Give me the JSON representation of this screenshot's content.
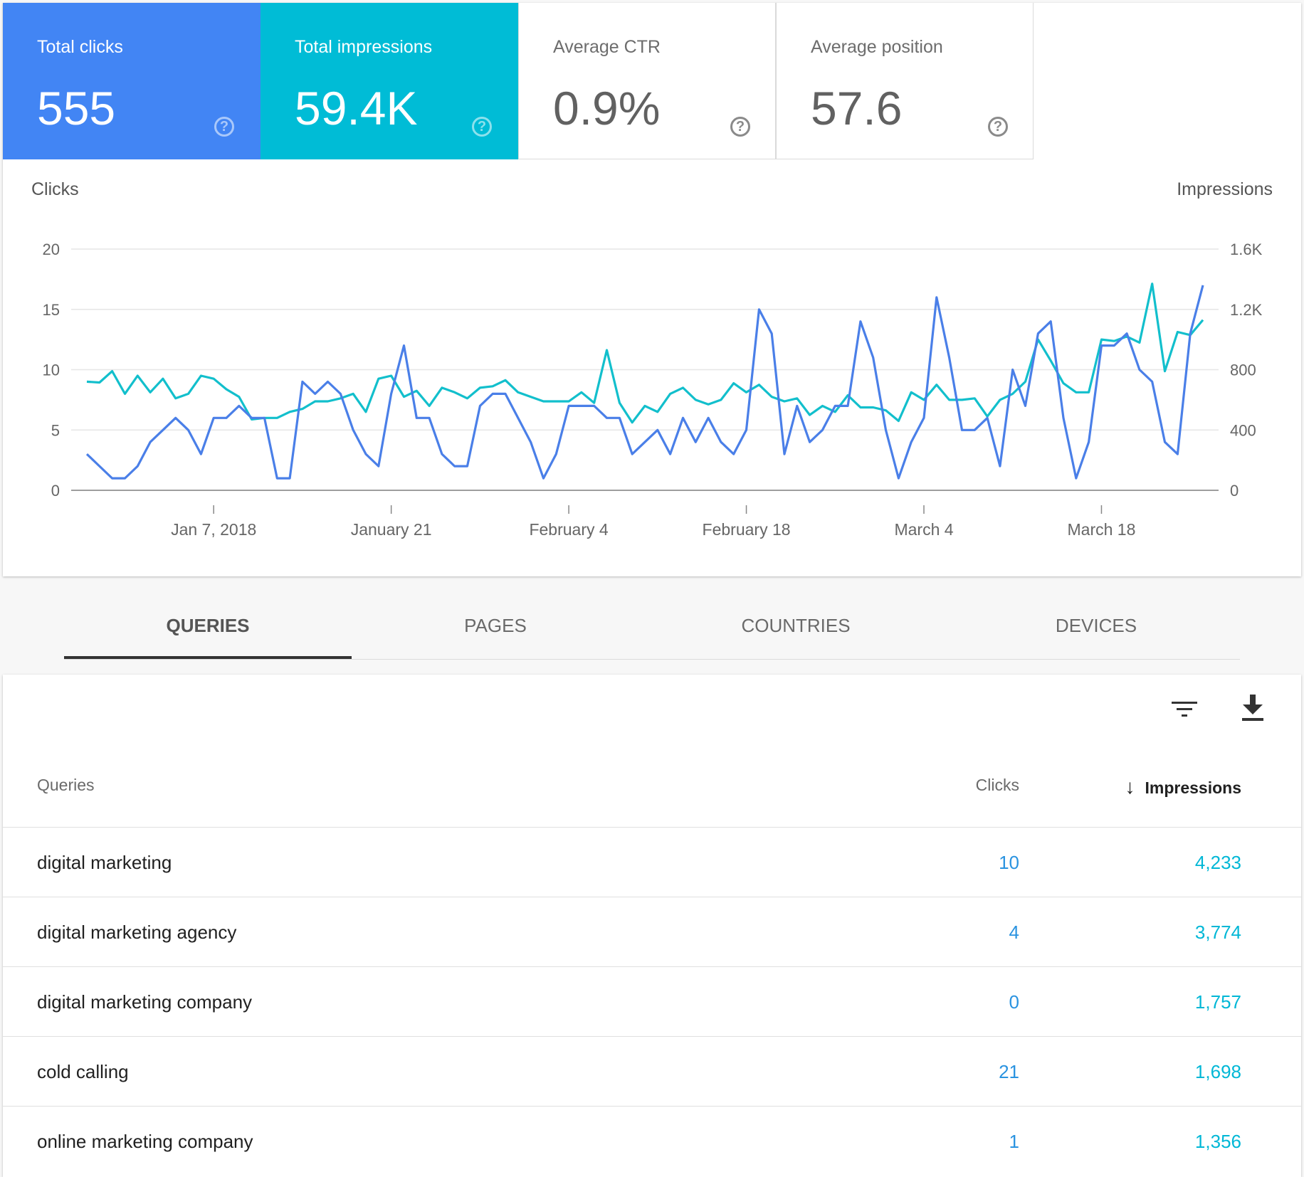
{
  "metrics": [
    {
      "label": "Total clicks",
      "value": "555",
      "bg": "#4285f4"
    },
    {
      "label": "Total impressions",
      "value": "59.4K",
      "bg": "#00bcd6"
    },
    {
      "label": "Average CTR",
      "value": "0.9%"
    },
    {
      "label": "Average position",
      "value": "57.6"
    }
  ],
  "help_glyph": "?",
  "chart_data": {
    "type": "line",
    "y_left_label": "Clicks",
    "y_right_label": "Impressions",
    "y_left_ticks": [
      "0",
      "5",
      "10",
      "15",
      "20"
    ],
    "y_right_ticks": [
      "0",
      "400",
      "800",
      "1.2K",
      "1.6K"
    ],
    "ylim_left": [
      0,
      20
    ],
    "ylim_right": [
      0,
      1600
    ],
    "x_ticks": [
      "Jan 7, 2018",
      "January 21",
      "February 4",
      "February 18",
      "March 4",
      "March 18"
    ],
    "grid": true,
    "series": [
      {
        "name": "Clicks",
        "axis": "left",
        "color": "#4a7fe8",
        "values": [
          3,
          2,
          1,
          1,
          2,
          4,
          5,
          6,
          5,
          3,
          6,
          6,
          7,
          6,
          6,
          1,
          1,
          9,
          8,
          9,
          8,
          5,
          3,
          2,
          8,
          12,
          6,
          6,
          3,
          2,
          2,
          7,
          8,
          8,
          6,
          4,
          1,
          3,
          7,
          7,
          7,
          6,
          6,
          3,
          4,
          5,
          3,
          6,
          4,
          6,
          4,
          3,
          5,
          15,
          13,
          3,
          7,
          4,
          5,
          7,
          7,
          14,
          11,
          5,
          1,
          4,
          6,
          16,
          11,
          5,
          5,
          6,
          2,
          10,
          7,
          13,
          14,
          6,
          1,
          4,
          12,
          12,
          13,
          10,
          9,
          4,
          3,
          13,
          17
        ]
      },
      {
        "name": "Impressions",
        "axis": "right",
        "color": "#12bfcc",
        "values": [
          720,
          715,
          790,
          640,
          760,
          650,
          740,
          610,
          640,
          760,
          740,
          670,
          620,
          470,
          480,
          480,
          520,
          540,
          590,
          590,
          610,
          640,
          520,
          740,
          760,
          620,
          660,
          560,
          680,
          650,
          610,
          680,
          690,
          730,
          650,
          620,
          590,
          590,
          590,
          650,
          580,
          930,
          580,
          450,
          560,
          520,
          640,
          680,
          600,
          570,
          600,
          710,
          650,
          700,
          620,
          590,
          610,
          500,
          560,
          520,
          630,
          550,
          550,
          530,
          460,
          650,
          600,
          700,
          600,
          600,
          610,
          490,
          600,
          640,
          720,
          1000,
          860,
          710,
          650,
          650,
          1000,
          990,
          1020,
          980,
          1370,
          790,
          1050,
          1030,
          1130
        ]
      }
    ]
  },
  "tabs": [
    "QUERIES",
    "PAGES",
    "COUNTRIES",
    "DEVICES"
  ],
  "selected_tab": "QUERIES",
  "table": {
    "headers": {
      "query": "Queries",
      "clicks": "Clicks",
      "impressions": "Impressions"
    },
    "sort_glyph": "↓",
    "rows": [
      {
        "query": "digital marketing",
        "clicks": "10",
        "impressions": "4,233"
      },
      {
        "query": "digital marketing agency",
        "clicks": "4",
        "impressions": "3,774"
      },
      {
        "query": "digital marketing company",
        "clicks": "0",
        "impressions": "1,757"
      },
      {
        "query": "cold calling",
        "clicks": "21",
        "impressions": "1,698"
      },
      {
        "query": "online marketing company",
        "clicks": "1",
        "impressions": "1,356"
      }
    ]
  },
  "icons": {
    "filter": "filter-icon",
    "download": "download-icon"
  }
}
